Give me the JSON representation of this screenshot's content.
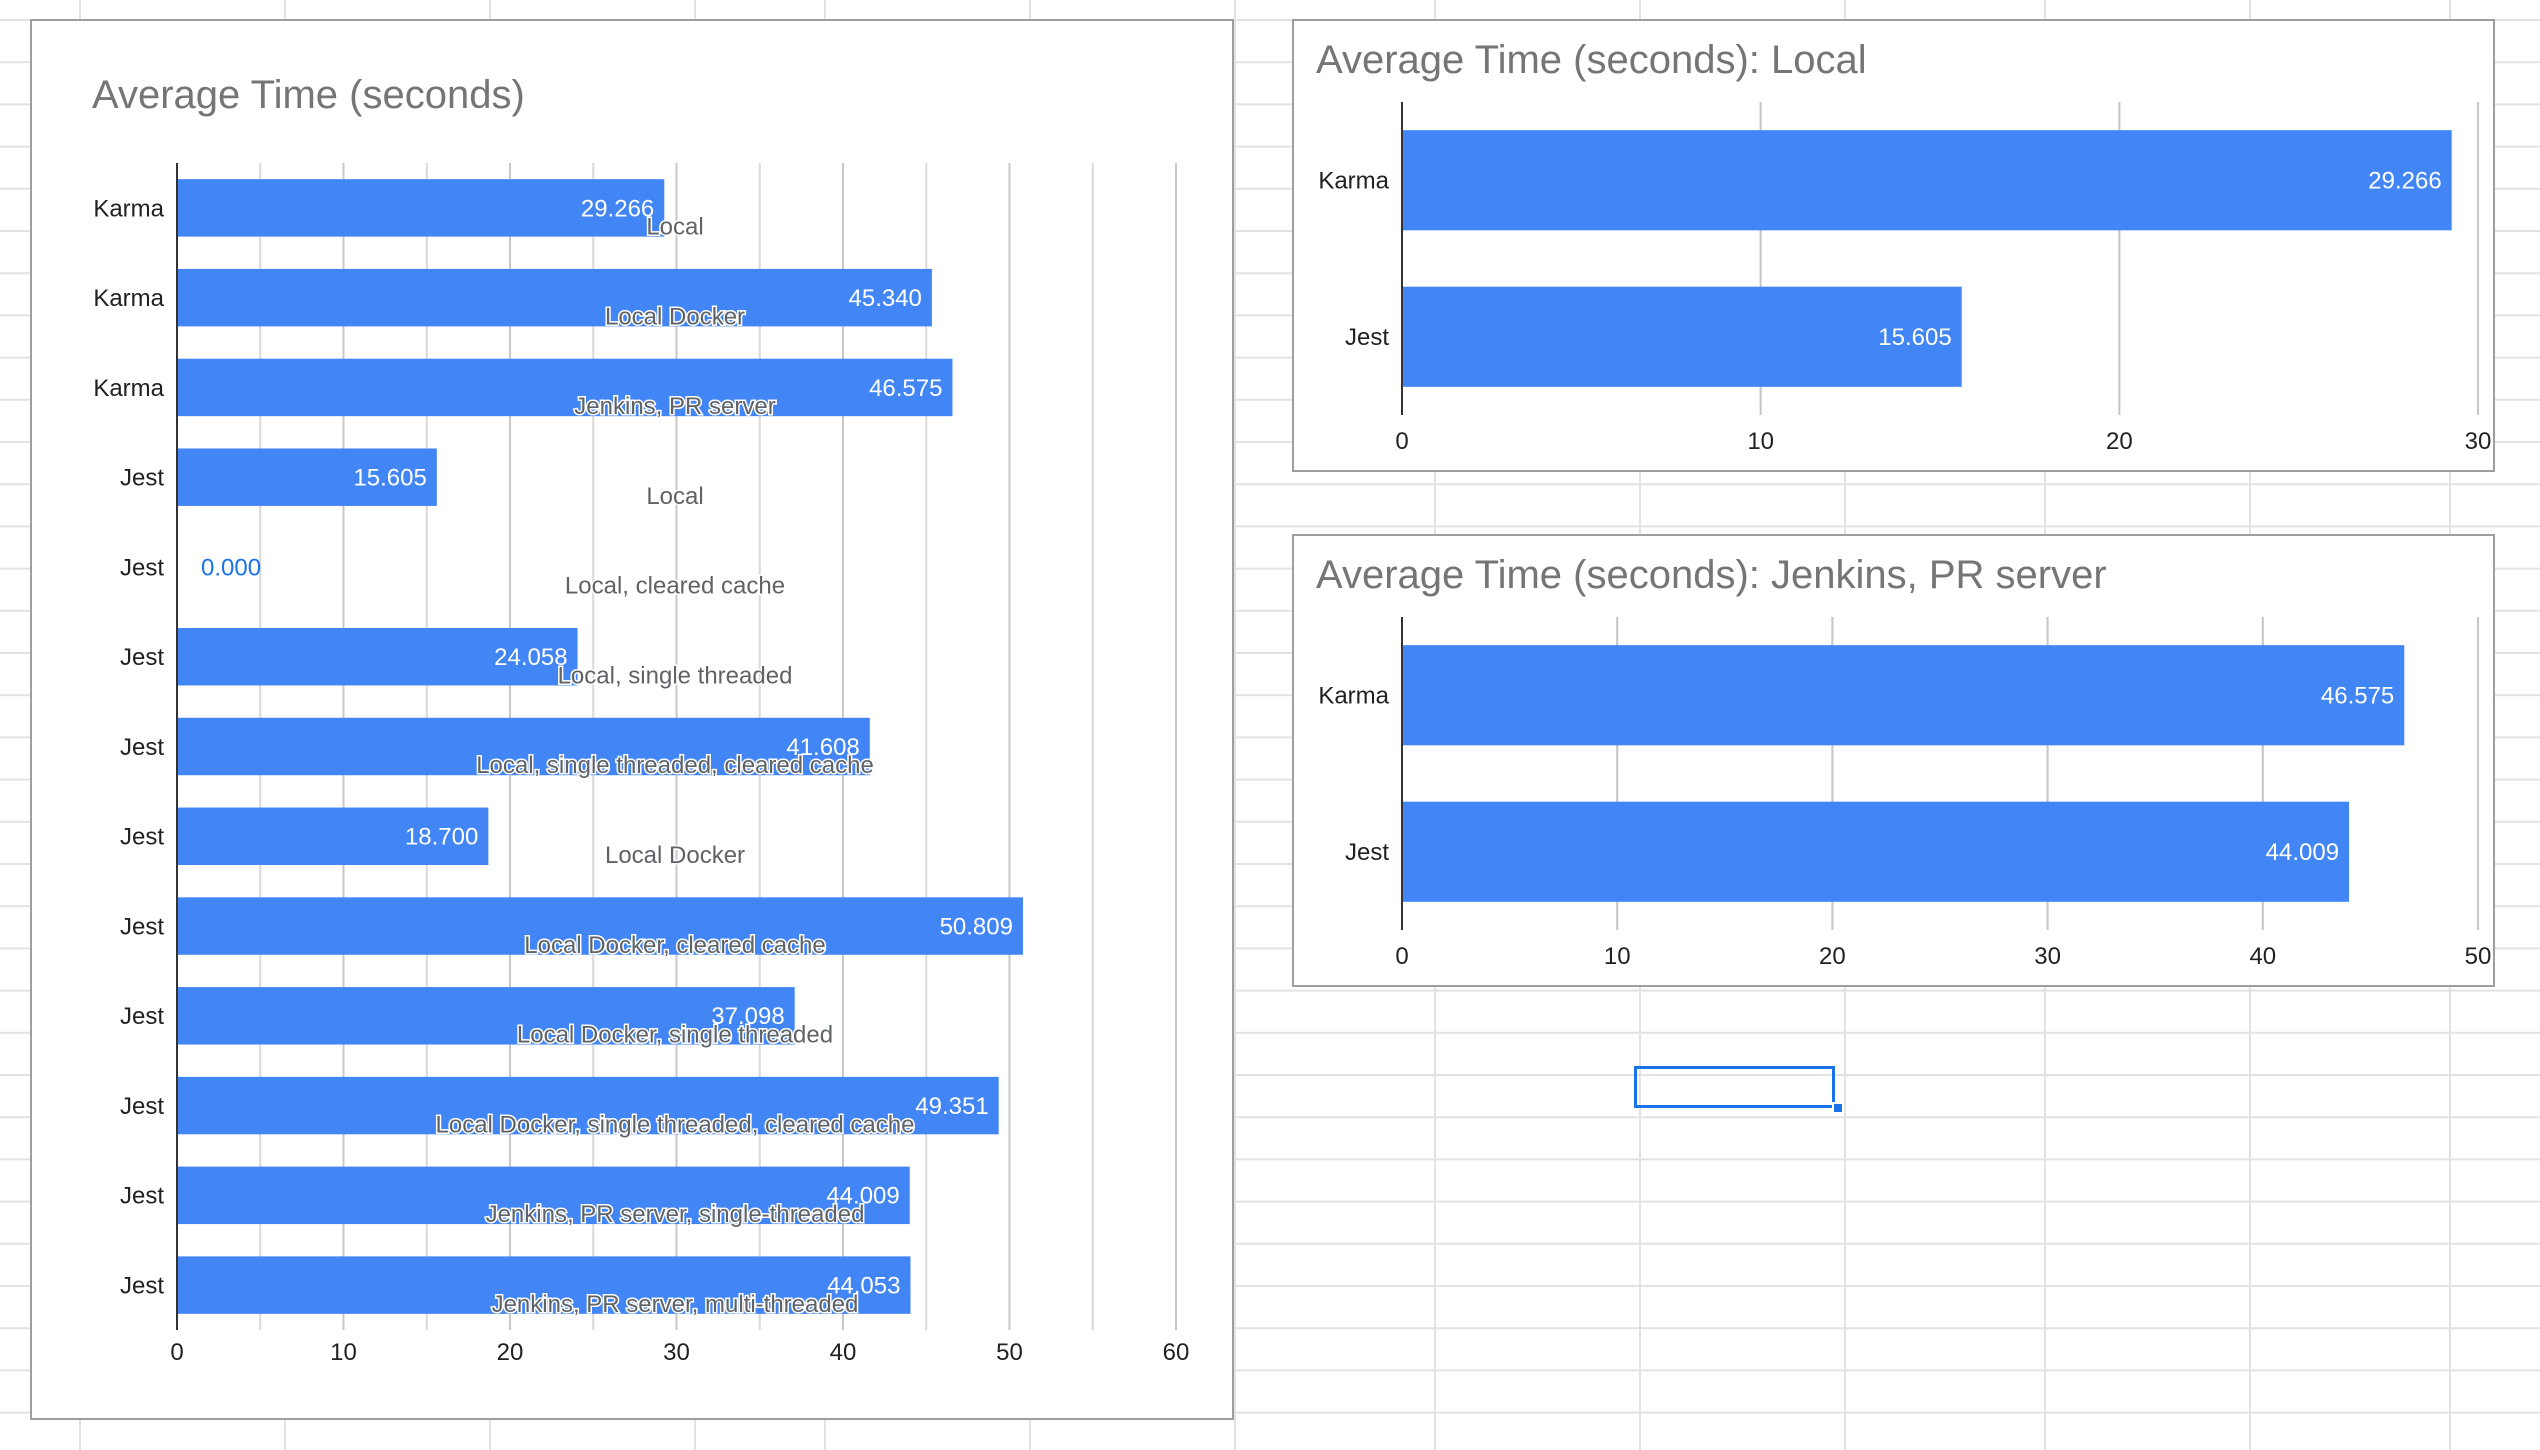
{
  "colors": {
    "bar": "#4285f4",
    "bar_label_inside": "#ffffff",
    "bar_label_outside": "#1a73e8",
    "category_text": "#202124",
    "annotation_text": "#5f6368",
    "title_text": "#757575",
    "gridline": "#d9d9d9",
    "axis": "#333333",
    "cell_grid": "#e2e2e2",
    "selection": "#1a73e8"
  },
  "chart_data": [
    {
      "type": "bar",
      "orientation": "horizontal",
      "title": "Average Time (seconds)",
      "categories": [
        "Karma",
        "Karma",
        "Karma",
        "Jest",
        "Jest",
        "Jest",
        "Jest",
        "Jest",
        "Jest",
        "Jest",
        "Jest",
        "Jest",
        "Jest"
      ],
      "values": [
        29.266,
        45.34,
        46.575,
        15.605,
        0.0,
        24.058,
        41.608,
        18.7,
        50.809,
        37.098,
        49.351,
        44.009,
        44.053
      ],
      "value_labels": [
        "29.266",
        "45.340",
        "46.575",
        "15.605",
        "0.000",
        "24.058",
        "41.608",
        "18.700",
        "50.809",
        "37.098",
        "49.351",
        "44.009",
        "44.053"
      ],
      "annotations": [
        "Local",
        "Local Docker",
        "Jenkins, PR server",
        "Local",
        "Local, cleared cache",
        "Local, single threaded",
        "Local, single threaded, cleared cache",
        "Local Docker",
        "Local Docker, cleared cache",
        "Local Docker, single threaded",
        "Local Docker, single threaded, cleared cache",
        "Jenkins, PR server, single-threaded",
        "Jenkins, PR server, multi-threaded"
      ],
      "xlim": [
        0,
        60
      ],
      "xticks": [
        "0",
        "10",
        "20",
        "30",
        "40",
        "50",
        "60"
      ],
      "xtick_values": [
        0,
        10,
        20,
        30,
        40,
        50,
        60
      ],
      "minor_grid_step": 5,
      "grid": true,
      "legend": "none"
    },
    {
      "type": "bar",
      "orientation": "horizontal",
      "title": "Average Time (seconds): Local",
      "categories": [
        "Karma",
        "Jest"
      ],
      "values": [
        29.266,
        15.605
      ],
      "value_labels": [
        "29.266",
        "15.605"
      ],
      "xlim": [
        0,
        30
      ],
      "xticks": [
        "0",
        "10",
        "20",
        "30"
      ],
      "xtick_values": [
        0,
        10,
        20,
        30
      ],
      "minor_grid_step": 10,
      "grid": true,
      "legend": "none"
    },
    {
      "type": "bar",
      "orientation": "horizontal",
      "title": "Average Time (seconds): Jenkins, PR server",
      "categories": [
        "Karma",
        "Jest"
      ],
      "values": [
        46.575,
        44.009
      ],
      "value_labels": [
        "46.575",
        "44.009"
      ],
      "xlim": [
        0,
        50
      ],
      "xticks": [
        "0",
        "10",
        "20",
        "30",
        "40",
        "50"
      ],
      "xtick_values": [
        0,
        10,
        20,
        30,
        40,
        50
      ],
      "minor_grid_step": 10,
      "grid": true,
      "legend": "none"
    }
  ]
}
